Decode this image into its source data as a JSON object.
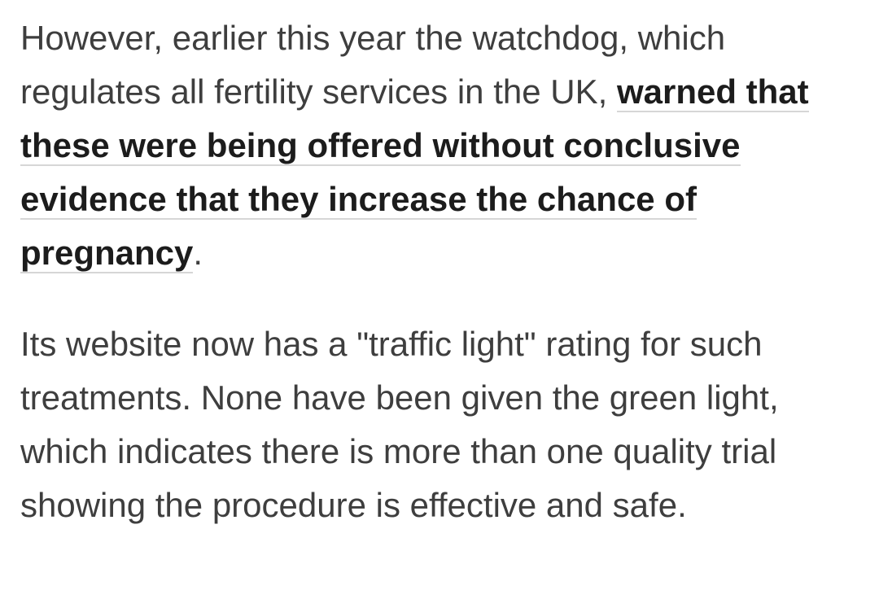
{
  "paragraphs": [
    {
      "text_before": "However, earlier this year the watchdog, which regulates all fertility services in the UK, ",
      "link": "warned that these were being offered without conclusive evidence that they increase the chance of pregnancy",
      "text_after": "."
    },
    {
      "text": "Its website now has a \"traffic light\" rating for such treatments. None have been given the green light, which indicates there is more than one quality trial showing the procedure is effective and safe."
    }
  ]
}
